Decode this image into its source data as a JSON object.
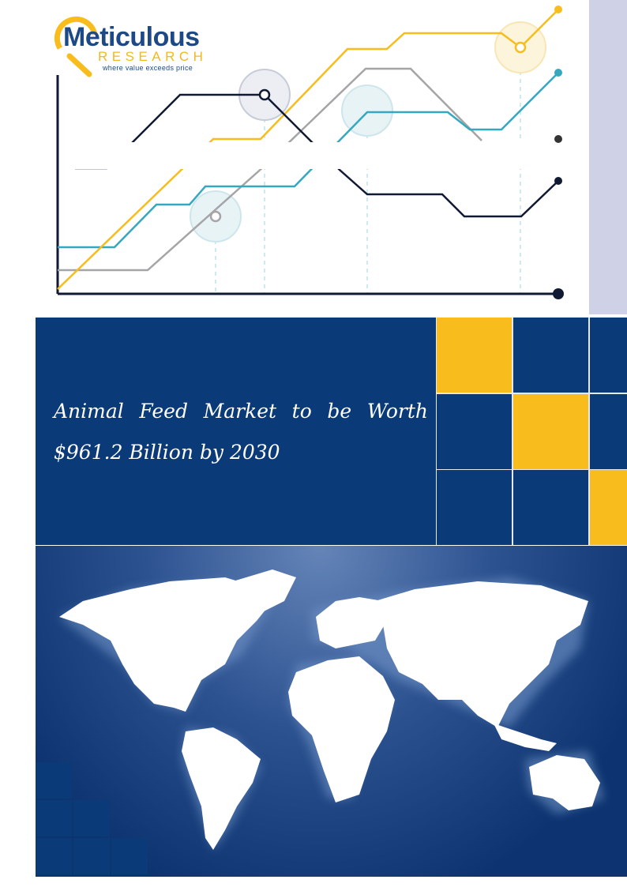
{
  "logo": {
    "name": "Meticulous",
    "sub": "RESEARCH",
    "tagline": "where value exceeds price"
  },
  "title": "Animal Feed Market to be Worth $961.2 Billion by 2030",
  "colors": {
    "navy": "#0b3a78",
    "yellow": "#f8bd1c",
    "teal": "#35a8bf",
    "gray": "#a5a5a8",
    "lavender": "#cfd2e6"
  }
}
